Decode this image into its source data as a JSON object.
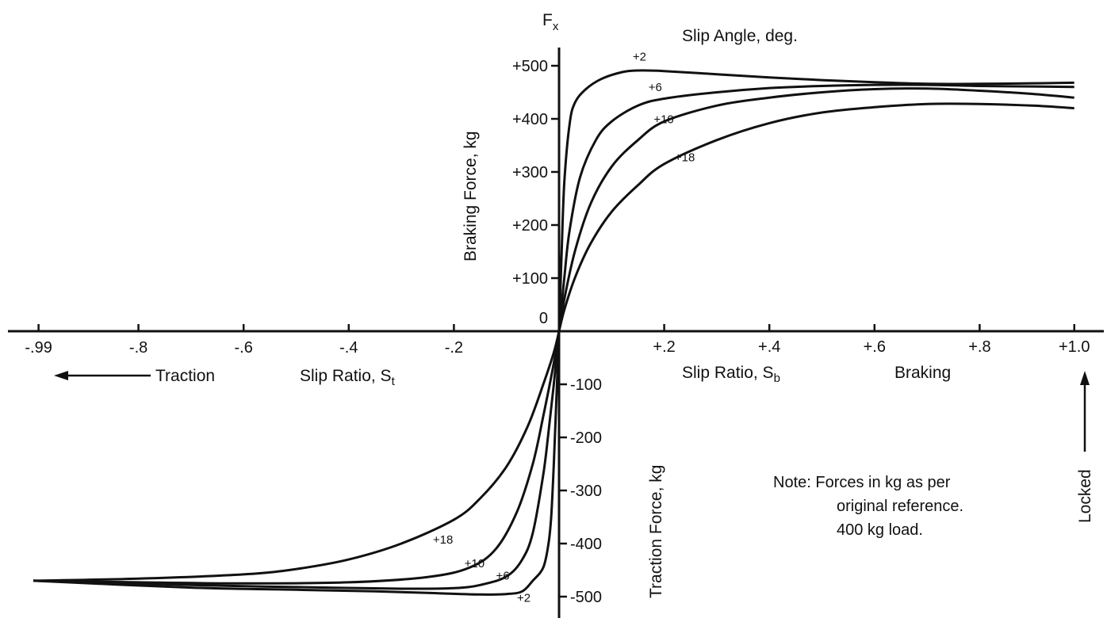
{
  "chart_data": {
    "type": "line",
    "title": "Slip Angle, deg.",
    "axis_letter": "F",
    "axis_letter_sub": "x",
    "ylabel_top": "Braking Force, kg",
    "ylabel_bottom": "Traction Force, kg",
    "xlabel_left": "Slip Ratio, S",
    "xlabel_left_sub": "t",
    "xlabel_right": "Slip Ratio, S",
    "xlabel_right_sub": "b",
    "traction_label": "Traction",
    "braking_label": "Braking",
    "locked_label": "Locked",
    "note": [
      "Note: Forces in kg as per",
      "original reference.",
      "400 kg load."
    ],
    "xlim": [
      -1.0,
      1.0
    ],
    "ylim": [
      -530,
      530
    ],
    "x_ticks_neg": [
      {
        "v": -0.99,
        "label": "-.99"
      },
      {
        "v": -0.8,
        "label": "-.8"
      },
      {
        "v": -0.6,
        "label": "-.6"
      },
      {
        "v": -0.4,
        "label": "-.4"
      },
      {
        "v": -0.2,
        "label": "-.2"
      }
    ],
    "x_ticks_pos": [
      {
        "v": 0.2,
        "label": "+.2"
      },
      {
        "v": 0.4,
        "label": "+.4"
      },
      {
        "v": 0.6,
        "label": "+.6"
      },
      {
        "v": 0.8,
        "label": "+.8"
      },
      {
        "v": 0.98,
        "label": "+1.0"
      }
    ],
    "y_ticks_pos": [
      {
        "v": 100,
        "label": "+100"
      },
      {
        "v": 200,
        "label": "+200"
      },
      {
        "v": 300,
        "label": "+300"
      },
      {
        "v": 400,
        "label": "+400"
      },
      {
        "v": 500,
        "label": "+500"
      }
    ],
    "y_ticks_neg": [
      {
        "v": -100,
        "label": "-100"
      },
      {
        "v": -200,
        "label": "-200"
      },
      {
        "v": -300,
        "label": "-300"
      },
      {
        "v": -400,
        "label": "-400"
      },
      {
        "v": -500,
        "label": "-500"
      }
    ],
    "y_zero_label": "0",
    "series": [
      {
        "name": "+2",
        "braking": [
          [
            0,
            0
          ],
          [
            0.005,
            150
          ],
          [
            0.01,
            280
          ],
          [
            0.02,
            390
          ],
          [
            0.03,
            430
          ],
          [
            0.05,
            455
          ],
          [
            0.08,
            475
          ],
          [
            0.12,
            488
          ],
          [
            0.15,
            491
          ],
          [
            0.2,
            490
          ],
          [
            0.3,
            484
          ],
          [
            0.4,
            478
          ],
          [
            0.5,
            473
          ],
          [
            0.6,
            469
          ],
          [
            0.7,
            466
          ],
          [
            0.8,
            466
          ],
          [
            0.9,
            467
          ],
          [
            0.98,
            468
          ]
        ],
        "traction": [
          [
            0,
            0
          ],
          [
            -0.01,
            -250
          ],
          [
            -0.015,
            -350
          ],
          [
            -0.02,
            -400
          ],
          [
            -0.03,
            -445
          ],
          [
            -0.05,
            -470
          ],
          [
            -0.07,
            -490
          ],
          [
            -0.1,
            -495
          ],
          [
            -0.15,
            -496
          ],
          [
            -0.25,
            -493
          ],
          [
            -0.35,
            -490
          ],
          [
            -0.5,
            -487
          ],
          [
            -0.7,
            -483
          ],
          [
            -1.0,
            -470
          ]
        ]
      },
      {
        "name": "+6",
        "braking": [
          [
            0,
            0
          ],
          [
            0.01,
            100
          ],
          [
            0.02,
            190
          ],
          [
            0.04,
            290
          ],
          [
            0.07,
            360
          ],
          [
            0.1,
            395
          ],
          [
            0.15,
            425
          ],
          [
            0.2,
            438
          ],
          [
            0.3,
            450
          ],
          [
            0.4,
            458
          ],
          [
            0.5,
            462
          ],
          [
            0.6,
            464
          ],
          [
            0.7,
            464
          ],
          [
            0.8,
            462
          ],
          [
            0.9,
            461
          ],
          [
            0.98,
            460
          ]
        ],
        "traction": [
          [
            0,
            0
          ],
          [
            -0.01,
            -100
          ],
          [
            -0.02,
            -190
          ],
          [
            -0.03,
            -270
          ],
          [
            -0.05,
            -380
          ],
          [
            -0.07,
            -430
          ],
          [
            -0.1,
            -462
          ],
          [
            -0.15,
            -478
          ],
          [
            -0.2,
            -484
          ],
          [
            -0.3,
            -485
          ],
          [
            -0.5,
            -482
          ],
          [
            -0.7,
            -478
          ],
          [
            -1.0,
            -470
          ]
        ]
      },
      {
        "name": "+10",
        "braking": [
          [
            0,
            0
          ],
          [
            0.01,
            60
          ],
          [
            0.03,
            150
          ],
          [
            0.06,
            240
          ],
          [
            0.1,
            310
          ],
          [
            0.15,
            360
          ],
          [
            0.2,
            395
          ],
          [
            0.3,
            425
          ],
          [
            0.4,
            440
          ],
          [
            0.5,
            450
          ],
          [
            0.6,
            456
          ],
          [
            0.7,
            457
          ],
          [
            0.8,
            453
          ],
          [
            0.9,
            447
          ],
          [
            0.98,
            440
          ]
        ],
        "traction": [
          [
            0,
            0
          ],
          [
            -0.01,
            -60
          ],
          [
            -0.03,
            -160
          ],
          [
            -0.05,
            -250
          ],
          [
            -0.08,
            -340
          ],
          [
            -0.12,
            -410
          ],
          [
            -0.17,
            -445
          ],
          [
            -0.25,
            -463
          ],
          [
            -0.4,
            -473
          ],
          [
            -0.6,
            -475
          ],
          [
            -0.8,
            -473
          ],
          [
            -1.0,
            -470
          ]
        ]
      },
      {
        "name": "+18",
        "braking": [
          [
            0,
            0
          ],
          [
            0.01,
            40
          ],
          [
            0.03,
            100
          ],
          [
            0.06,
            165
          ],
          [
            0.1,
            225
          ],
          [
            0.15,
            275
          ],
          [
            0.2,
            315
          ],
          [
            0.3,
            360
          ],
          [
            0.4,
            392
          ],
          [
            0.5,
            412
          ],
          [
            0.6,
            422
          ],
          [
            0.7,
            428
          ],
          [
            0.8,
            428
          ],
          [
            0.9,
            425
          ],
          [
            0.98,
            420
          ]
        ],
        "traction": [
          [
            0,
            0
          ],
          [
            -0.01,
            -40
          ],
          [
            -0.03,
            -100
          ],
          [
            -0.06,
            -180
          ],
          [
            -0.1,
            -255
          ],
          [
            -0.15,
            -315
          ],
          [
            -0.2,
            -355
          ],
          [
            -0.3,
            -400
          ],
          [
            -0.4,
            -430
          ],
          [
            -0.5,
            -448
          ],
          [
            -0.6,
            -458
          ],
          [
            -0.8,
            -466
          ],
          [
            -1.0,
            -470
          ]
        ]
      }
    ]
  }
}
